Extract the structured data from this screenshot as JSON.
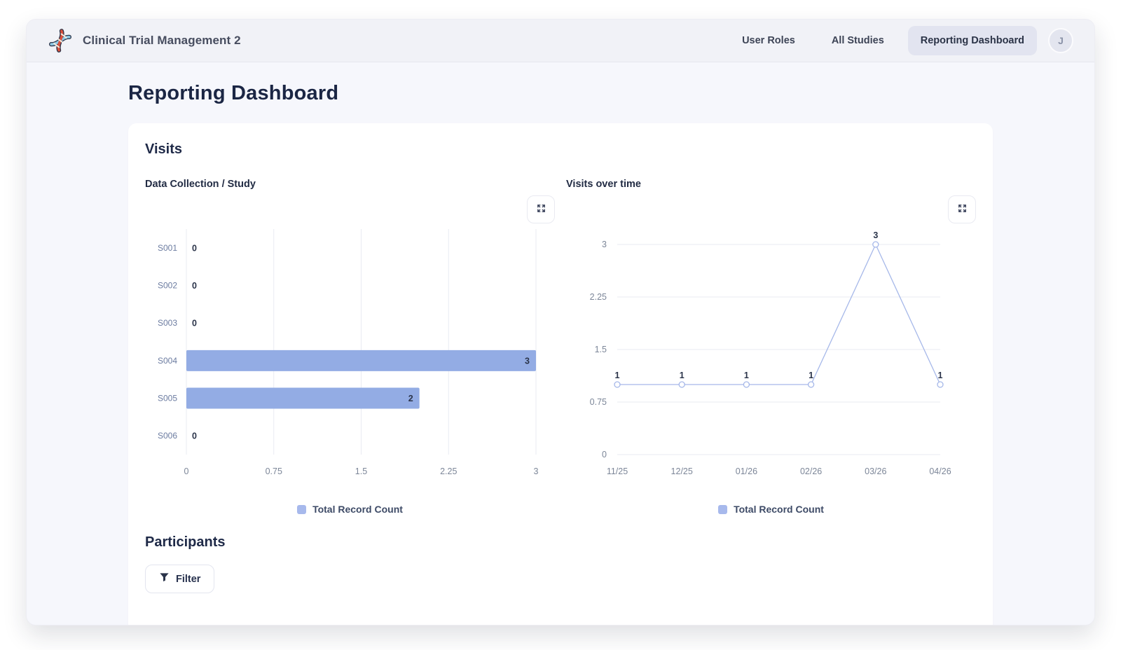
{
  "header": {
    "app_title": "Clinical Trial Management 2",
    "nav": [
      {
        "label": "User Roles",
        "active": false
      },
      {
        "label": "All Studies",
        "active": false
      },
      {
        "label": "Reporting Dashboard",
        "active": true
      }
    ],
    "avatar_initial": "J"
  },
  "page": {
    "title": "Reporting Dashboard",
    "sections": {
      "visits": "Visits",
      "participants": "Participants"
    }
  },
  "filter_button": {
    "label": "Filter"
  },
  "colors": {
    "bar": "#93ace4",
    "line": "#a6b8e9",
    "marker_fill": "#ffffff",
    "legend_swatch": "#a7b9ec",
    "grid": "#e9ebf2",
    "tick": "#7c8698",
    "category": "#6b7ba0",
    "value_label": "#2a3349"
  },
  "chart_data": [
    {
      "type": "bar",
      "orientation": "horizontal",
      "title": "Data Collection / Study",
      "categories": [
        "S001",
        "S002",
        "S003",
        "S004",
        "S005",
        "S006"
      ],
      "values": [
        0,
        0,
        0,
        3,
        2,
        0
      ],
      "xticks": [
        0,
        0.75,
        1.5,
        2.25,
        3
      ],
      "xlim": [
        0,
        3
      ],
      "grid": "vertical-only",
      "legend": [
        "Total Record Count"
      ],
      "legend_position": "bottom"
    },
    {
      "type": "line",
      "title": "Visits over time",
      "x": [
        "11/25",
        "12/25",
        "01/26",
        "02/26",
        "03/26",
        "04/26"
      ],
      "values": [
        1,
        1,
        1,
        1,
        3,
        1
      ],
      "yticks": [
        0,
        0.75,
        1.5,
        2.25,
        3
      ],
      "ylim": [
        0,
        3
      ],
      "grid": "horizontal-only",
      "point_labels": [
        "1",
        "1",
        "1",
        "1",
        "3",
        "1"
      ],
      "legend": [
        "Total Record Count"
      ],
      "legend_position": "bottom"
    }
  ]
}
